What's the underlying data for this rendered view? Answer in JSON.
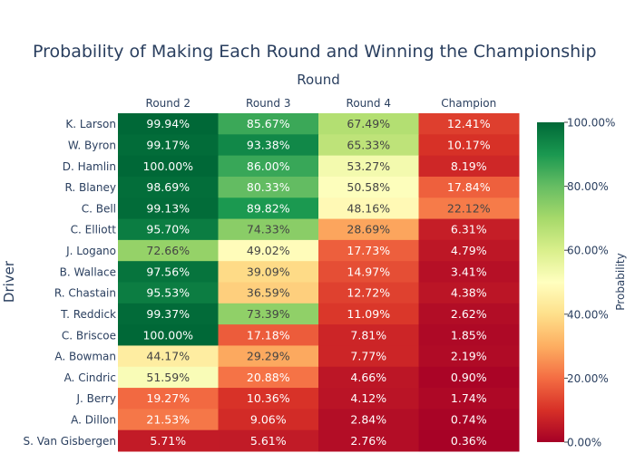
{
  "chart_data": {
    "type": "heatmap",
    "title": "Probability of Making Each Round and Winning the Championship",
    "xlabel": "Round",
    "ylabel": "Driver",
    "x": [
      "Round 2",
      "Round 3",
      "Round 4",
      "Champion"
    ],
    "y": [
      "K. Larson",
      "W. Byron",
      "D. Hamlin",
      "R. Blaney",
      "C. Bell",
      "C. Elliott",
      "J. Logano",
      "B. Wallace",
      "R. Chastain",
      "T. Reddick",
      "C. Briscoe",
      "A. Bowman",
      "A. Cindric",
      "J. Berry",
      "A. Dillon",
      "S. Van Gisbergen"
    ],
    "z": [
      [
        99.94,
        85.67,
        67.49,
        12.41
      ],
      [
        99.17,
        93.38,
        65.33,
        10.17
      ],
      [
        100.0,
        86.0,
        53.27,
        8.19
      ],
      [
        98.69,
        80.33,
        50.58,
        17.84
      ],
      [
        99.13,
        89.82,
        48.16,
        22.12
      ],
      [
        95.7,
        74.33,
        28.69,
        6.31
      ],
      [
        72.66,
        49.02,
        17.73,
        4.79
      ],
      [
        97.56,
        39.09,
        14.97,
        3.41
      ],
      [
        95.53,
        36.59,
        12.72,
        4.38
      ],
      [
        99.37,
        73.39,
        11.09,
        2.62
      ],
      [
        100.0,
        17.18,
        7.81,
        1.85
      ],
      [
        44.17,
        29.29,
        7.77,
        2.19
      ],
      [
        51.59,
        20.88,
        4.66,
        0.9
      ],
      [
        19.27,
        10.36,
        4.12,
        1.74
      ],
      [
        21.53,
        9.06,
        2.84,
        0.74
      ],
      [
        5.71,
        5.61,
        2.76,
        0.36
      ]
    ],
    "text": [
      [
        "99.94%",
        "85.67%",
        "67.49%",
        "12.41%"
      ],
      [
        "99.17%",
        "93.38%",
        "65.33%",
        "10.17%"
      ],
      [
        "100.00%",
        "86.00%",
        "53.27%",
        "8.19%"
      ],
      [
        "98.69%",
        "80.33%",
        "50.58%",
        "17.84%"
      ],
      [
        "99.13%",
        "89.82%",
        "48.16%",
        "22.12%"
      ],
      [
        "95.70%",
        "74.33%",
        "28.69%",
        "6.31%"
      ],
      [
        "72.66%",
        "49.02%",
        "17.73%",
        "4.79%"
      ],
      [
        "97.56%",
        "39.09%",
        "14.97%",
        "3.41%"
      ],
      [
        "95.53%",
        "36.59%",
        "12.72%",
        "4.38%"
      ],
      [
        "99.37%",
        "73.39%",
        "11.09%",
        "2.62%"
      ],
      [
        "100.00%",
        "17.18%",
        "7.81%",
        "1.85%"
      ],
      [
        "44.17%",
        "29.29%",
        "7.77%",
        "2.19%"
      ],
      [
        "51.59%",
        "20.88%",
        "4.66%",
        "0.90%"
      ],
      [
        "19.27%",
        "10.36%",
        "4.12%",
        "1.74%"
      ],
      [
        "21.53%",
        "9.06%",
        "2.84%",
        "0.74%"
      ],
      [
        "5.71%",
        "5.61%",
        "2.76%",
        "0.36%"
      ]
    ],
    "zmin": 0,
    "zmax": 100,
    "colorscale": "RdYlGn",
    "colorscale_stops": [
      [
        0.0,
        "#a50026"
      ],
      [
        0.1,
        "#d73027"
      ],
      [
        0.2,
        "#f46d43"
      ],
      [
        0.3,
        "#fdae61"
      ],
      [
        0.4,
        "#fee08b"
      ],
      [
        0.5,
        "#ffffbf"
      ],
      [
        0.6,
        "#d9ef8b"
      ],
      [
        0.7,
        "#a6d96a"
      ],
      [
        0.8,
        "#66bd63"
      ],
      [
        0.9,
        "#1a9850"
      ],
      [
        1.0,
        "#006837"
      ]
    ],
    "colorbar": {
      "title": "Probability",
      "ticks": [
        "0.00%",
        "20.00%",
        "40.00%",
        "60.00%",
        "80.00%",
        "100.00%"
      ],
      "tick_values": [
        0,
        20,
        40,
        60,
        80,
        100
      ]
    },
    "x_axis_side": "top",
    "text_color_dark": "#444444",
    "text_color_light": "#ffffff"
  }
}
